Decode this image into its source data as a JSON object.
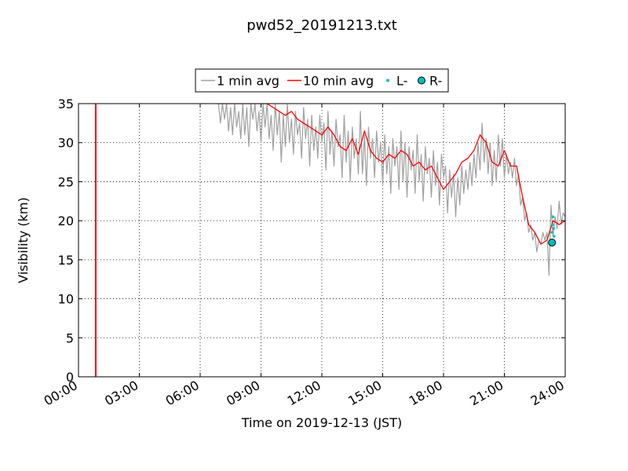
{
  "chart_data": {
    "type": "line",
    "title": "pwd52_20191213.txt",
    "xlabel": "Time on 2019-12-13 (JST)",
    "ylabel": "Visibility (km)",
    "x_unit": "hours",
    "xlim": [
      0,
      24
    ],
    "ylim": [
      0,
      35
    ],
    "x_ticks": [
      0,
      3,
      6,
      9,
      12,
      15,
      18,
      21,
      24
    ],
    "x_tick_labels": [
      "00:00",
      "03:00",
      "06:00",
      "09:00",
      "12:00",
      "15:00",
      "18:00",
      "21:00",
      "24:00"
    ],
    "y_ticks": [
      0,
      5,
      10,
      15,
      20,
      25,
      30,
      35
    ],
    "y_tick_labels": [
      "0",
      "5",
      "10",
      "15",
      "20",
      "25",
      "30",
      "35"
    ],
    "grid": true,
    "legend_position": "top-center",
    "series": [
      {
        "name": "1 min avg",
        "kind": "line",
        "color": "#a0a0a0",
        "x": [
          6.9,
          7.0,
          7.1,
          7.2,
          7.3,
          7.4,
          7.5,
          7.6,
          7.7,
          7.8,
          7.9,
          8.0,
          8.1,
          8.2,
          8.3,
          8.4,
          8.5,
          8.6,
          8.7,
          8.8,
          8.9,
          9.0,
          9.1,
          9.2,
          9.3,
          9.4,
          9.5,
          9.6,
          9.7,
          9.8,
          9.9,
          10.0,
          10.1,
          10.2,
          10.3,
          10.4,
          10.5,
          10.6,
          10.7,
          10.8,
          10.9,
          11.0,
          11.1,
          11.2,
          11.3,
          11.4,
          11.5,
          11.6,
          11.7,
          11.8,
          11.9,
          12.0,
          12.1,
          12.2,
          12.3,
          12.4,
          12.5,
          12.6,
          12.7,
          12.8,
          12.9,
          13.0,
          13.1,
          13.2,
          13.3,
          13.4,
          13.5,
          13.6,
          13.7,
          13.8,
          13.9,
          14.0,
          14.1,
          14.2,
          14.3,
          14.4,
          14.5,
          14.6,
          14.7,
          14.8,
          14.9,
          15.0,
          15.1,
          15.2,
          15.3,
          15.4,
          15.5,
          15.6,
          15.7,
          15.8,
          15.9,
          16.0,
          16.1,
          16.2,
          16.3,
          16.4,
          16.5,
          16.6,
          16.7,
          16.8,
          16.9,
          17.0,
          17.1,
          17.2,
          17.3,
          17.4,
          17.5,
          17.6,
          17.7,
          17.8,
          17.9,
          18.0,
          18.1,
          18.2,
          18.3,
          18.4,
          18.5,
          18.6,
          18.7,
          18.8,
          18.9,
          19.0,
          19.1,
          19.2,
          19.3,
          19.4,
          19.5,
          19.6,
          19.7,
          19.8,
          19.9,
          20.0,
          20.1,
          20.2,
          20.3,
          20.4,
          20.5,
          20.6,
          20.7,
          20.8,
          20.9,
          21.0,
          21.1,
          21.2,
          21.3,
          21.4,
          21.5,
          21.6,
          21.7,
          21.8,
          21.9,
          22.0,
          22.1,
          22.2,
          22.3,
          22.4,
          22.5,
          22.6,
          22.7,
          22.8,
          22.9,
          23.0,
          23.1,
          23.2,
          23.3,
          23.4,
          23.5,
          23.6,
          23.7,
          23.8,
          23.9,
          24.0
        ],
        "y": [
          35,
          32.5,
          35,
          33.0,
          35,
          31.5,
          34.5,
          31.0,
          35,
          32.0,
          34.0,
          30.5,
          35,
          31.0,
          34.5,
          29.5,
          35,
          33.0,
          35,
          31.5,
          34.0,
          30.0,
          35,
          32.0,
          35,
          30.5,
          33.5,
          29.0,
          35,
          31.0,
          34.0,
          27.5,
          33.5,
          29.5,
          35,
          30.0,
          33.0,
          28.5,
          34.0,
          31.0,
          32.5,
          28.0,
          34.5,
          30.5,
          33.0,
          27.0,
          33.5,
          29.0,
          32.0,
          28.0,
          33.5,
          30.0,
          32.5,
          26.5,
          34.0,
          28.5,
          31.5,
          27.0,
          33.0,
          29.5,
          31.0,
          25.5,
          33.5,
          27.5,
          31.5,
          25.0,
          32.0,
          28.0,
          30.5,
          26.0,
          34.0,
          26.0,
          31.0,
          24.5,
          32.0,
          28.0,
          30.5,
          25.5,
          31.5,
          27.5,
          30.0,
          24.5,
          31.0,
          26.0,
          29.5,
          23.5,
          30.5,
          27.0,
          29.5,
          24.0,
          31.5,
          25.0,
          30.0,
          23.0,
          29.5,
          26.5,
          29.0,
          23.5,
          31.0,
          25.0,
          28.5,
          22.5,
          29.5,
          26.0,
          28.0,
          23.0,
          29.0,
          24.5,
          27.5,
          22.0,
          28.5,
          25.5,
          27.0,
          21.0,
          26.5,
          23.0,
          26.0,
          20.5,
          25.5,
          22.0,
          27.0,
          23.5,
          26.5,
          24.0,
          27.5,
          24.5,
          28.5,
          25.5,
          30.0,
          26.5,
          32.5,
          27.5,
          30.5,
          26.0,
          30.0,
          24.5,
          29.0,
          25.0,
          31.0,
          27.0,
          30.5,
          25.5,
          28.5,
          26.0,
          27.5,
          25.5,
          28.0,
          24.5,
          26.0,
          22.0,
          23.0,
          20.0,
          21.0,
          18.5,
          19.5,
          17.5,
          18.5,
          16.0,
          17.5,
          17.0,
          18.5,
          17.5,
          18.5,
          13.0,
          22.0,
          18.0,
          20.5,
          19.0,
          22.5,
          19.5,
          21.0,
          20.5
        ]
      },
      {
        "name": "10 min avg",
        "kind": "line",
        "color": "#ff0000",
        "x": [
          6.9,
          7.2,
          7.5,
          7.8,
          8.1,
          8.4,
          8.7,
          9.0,
          9.3,
          9.6,
          9.9,
          10.2,
          10.5,
          10.8,
          11.1,
          11.4,
          11.7,
          12.0,
          12.3,
          12.6,
          12.9,
          13.2,
          13.5,
          13.8,
          14.1,
          14.4,
          14.7,
          15.0,
          15.3,
          15.6,
          15.9,
          16.2,
          16.5,
          16.8,
          17.1,
          17.4,
          17.7,
          18.0,
          18.3,
          18.6,
          18.9,
          19.2,
          19.5,
          19.8,
          20.1,
          20.4,
          20.7,
          21.0,
          21.3,
          21.6,
          21.9,
          22.2,
          22.5,
          22.8,
          23.1,
          23.4,
          23.7,
          24.0
        ],
        "y": [
          35,
          35,
          35,
          35,
          35,
          35,
          35,
          35,
          35,
          34.5,
          34.0,
          33.5,
          34.0,
          33.0,
          32.5,
          32.0,
          31.5,
          31.0,
          32.0,
          31.0,
          29.5,
          29.0,
          30.5,
          28.5,
          31.5,
          29.0,
          28.0,
          27.5,
          28.5,
          28.0,
          29.0,
          28.5,
          27.0,
          27.5,
          26.5,
          27.0,
          25.5,
          24.0,
          25.0,
          26.0,
          27.5,
          28.0,
          29.0,
          31.0,
          30.0,
          27.5,
          27.0,
          29.0,
          27.0,
          27.0,
          23.0,
          19.5,
          18.5,
          17.0,
          17.5,
          20.0,
          19.5,
          20.0
        ]
      },
      {
        "name": "L-",
        "kind": "points",
        "color": "#00bfbf",
        "x": [
          23.35,
          23.38,
          23.4,
          23.42,
          23.45
        ],
        "y": [
          18.5,
          19.5,
          20.5,
          19.0,
          18.0
        ]
      },
      {
        "name": "R-",
        "kind": "markers",
        "color": "#00bfbf",
        "x": [
          23.35
        ],
        "y": [
          17.2
        ]
      }
    ],
    "vertical_lines": [
      {
        "x": 0.85,
        "color": "#ff0000"
      }
    ]
  }
}
